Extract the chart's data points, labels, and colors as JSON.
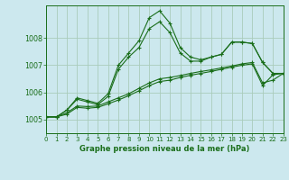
{
  "title": "Graphe pression niveau de la mer (hPa)",
  "bg_color": "#cce8ee",
  "grid_color": "#aaccbb",
  "line_color": "#1a6e1a",
  "xlim": [
    0,
    23
  ],
  "ylim": [
    1004.5,
    1009.2
  ],
  "xticks": [
    0,
    1,
    2,
    3,
    4,
    5,
    6,
    7,
    8,
    9,
    10,
    11,
    12,
    13,
    14,
    15,
    16,
    17,
    18,
    19,
    20,
    21,
    22,
    23
  ],
  "yticks": [
    1005,
    1006,
    1007,
    1008
  ],
  "lines": [
    {
      "x": [
        0,
        1,
        2,
        3,
        4,
        5,
        6,
        7,
        8,
        9,
        10,
        11,
        12,
        13,
        14,
        15,
        16,
        17,
        18,
        19,
        20,
        21,
        22,
        23
      ],
      "y": [
        1005.1,
        1005.1,
        1005.35,
        1005.8,
        1005.7,
        1005.6,
        1005.95,
        1007.0,
        1007.45,
        1007.9,
        1008.75,
        1009.0,
        1008.55,
        1007.65,
        1007.3,
        1007.2,
        1007.3,
        1007.4,
        1007.85,
        1007.85,
        1007.8,
        1007.1,
        1006.7,
        1006.7
      ]
    },
    {
      "x": [
        0,
        1,
        2,
        3,
        4,
        5,
        6,
        7,
        8,
        9,
        10,
        11,
        12,
        13,
        14,
        15,
        16,
        17,
        18,
        19,
        20,
        21,
        22,
        23
      ],
      "y": [
        1005.1,
        1005.1,
        1005.35,
        1005.75,
        1005.65,
        1005.55,
        1005.85,
        1006.85,
        1007.3,
        1007.65,
        1008.35,
        1008.6,
        1008.2,
        1007.45,
        1007.15,
        1007.15,
        1007.3,
        1007.4,
        1007.85,
        1007.85,
        1007.8,
        1007.1,
        1006.7,
        1006.7
      ]
    },
    {
      "x": [
        0,
        1,
        2,
        3,
        4,
        5,
        6,
        7,
        8,
        9,
        10,
        11,
        12,
        13,
        14,
        15,
        16,
        17,
        18,
        19,
        20,
        21,
        22,
        23
      ],
      "y": [
        1005.1,
        1005.1,
        1005.25,
        1005.5,
        1005.48,
        1005.5,
        1005.65,
        1005.8,
        1005.95,
        1006.15,
        1006.35,
        1006.5,
        1006.55,
        1006.62,
        1006.7,
        1006.77,
        1006.83,
        1006.9,
        1006.97,
        1007.05,
        1007.1,
        1006.35,
        1006.45,
        1006.7
      ]
    },
    {
      "x": [
        0,
        1,
        2,
        3,
        4,
        5,
        6,
        7,
        8,
        9,
        10,
        11,
        12,
        13,
        14,
        15,
        16,
        17,
        18,
        19,
        20,
        21,
        22,
        23
      ],
      "y": [
        1005.1,
        1005.1,
        1005.2,
        1005.45,
        1005.42,
        1005.45,
        1005.58,
        1005.72,
        1005.88,
        1006.06,
        1006.25,
        1006.4,
        1006.45,
        1006.55,
        1006.63,
        1006.7,
        1006.77,
        1006.85,
        1006.93,
        1007.0,
        1007.05,
        1006.25,
        1006.65,
        1006.7
      ]
    }
  ]
}
